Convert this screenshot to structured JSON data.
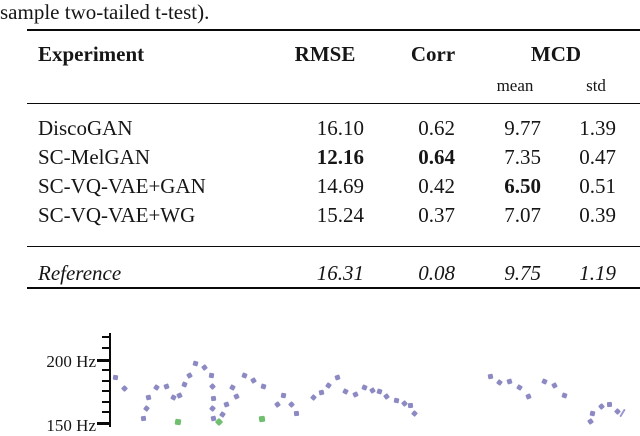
{
  "caption": {
    "text": "sample two-tailed t-test)."
  },
  "table": {
    "headers": {
      "experiment": "Experiment",
      "rmse": "RMSE",
      "corr": "Corr",
      "mcd": "MCD",
      "mcd_sub_mean": "mean",
      "mcd_sub_std": "std"
    },
    "rows": [
      {
        "name": "DiscoGAN",
        "rmse": "16.10",
        "corr": "0.62",
        "mcd_mean": "9.77",
        "mcd_std": "1.39",
        "bold": []
      },
      {
        "name": "SC-MelGAN",
        "rmse": "12.16",
        "corr": "0.64",
        "mcd_mean": "7.35",
        "mcd_std": "0.47",
        "bold": [
          "rmse",
          "corr"
        ]
      },
      {
        "name": "SC-VQ-VAE+GAN",
        "rmse": "14.69",
        "corr": "0.42",
        "mcd_mean": "6.50",
        "mcd_std": "0.51",
        "bold": [
          "mcd_mean"
        ]
      },
      {
        "name": "SC-VQ-VAE+WG",
        "rmse": "15.24",
        "corr": "0.37",
        "mcd_mean": "7.07",
        "mcd_std": "0.39",
        "bold": []
      }
    ],
    "reference_row": {
      "name": "Reference",
      "rmse": "16.31",
      "corr": "0.08",
      "mcd_mean": "9.75",
      "mcd_std": "1.19"
    }
  },
  "chart_data": {
    "type": "scatter",
    "title": "",
    "xlabel": "",
    "ylabel": "",
    "y_axis_ticks": [
      {
        "label": "200 Hz",
        "hz": 200
      },
      {
        "label": "150 Hz",
        "hz": 150
      }
    ],
    "minor_divisions_between_major": 6,
    "ylim_visible_hz": [
      149,
      221
    ],
    "grid": false,
    "legend": "none",
    "x_unit": "time (pixels, axis cropped out of view)",
    "series": [
      {
        "name": "pitch-contour-primary",
        "marker": "diamond",
        "color": "#8d8ac3",
        "points": [
          [
            115,
            185.9
          ],
          [
            124,
            177.3
          ],
          [
            143,
            153.9
          ],
          [
            146,
            161.7
          ],
          [
            148,
            170.3
          ],
          [
            156,
            178.1
          ],
          [
            166,
            178.9
          ],
          [
            173,
            170.3
          ],
          [
            179,
            171.9
          ],
          [
            184,
            180.5
          ],
          [
            189,
            187.5
          ],
          [
            195,
            196.9
          ],
          [
            204,
            193.8
          ],
          [
            211,
            187.5
          ],
          [
            212,
            178.9
          ],
          [
            213,
            169.5
          ],
          [
            212,
            161.7
          ],
          [
            213,
            153.9
          ],
          [
            222,
            157.0
          ],
          [
            226,
            164.8
          ],
          [
            232,
            178.1
          ],
          [
            236,
            171.1
          ],
          [
            244,
            187.5
          ],
          [
            253,
            183.6
          ],
          [
            263,
            178.9
          ],
          [
            277,
            164.8
          ],
          [
            283,
            171.9
          ],
          [
            291,
            164.8
          ],
          [
            296,
            157.8
          ],
          [
            313,
            170.3
          ],
          [
            321,
            174.2
          ],
          [
            328,
            179.7
          ],
          [
            337,
            185.9
          ],
          [
            345,
            175.0
          ],
          [
            355,
            172.7
          ],
          [
            364,
            178.1
          ],
          [
            372,
            175.8
          ],
          [
            379,
            175.0
          ],
          [
            386,
            171.1
          ],
          [
            396,
            168.0
          ],
          [
            404,
            165.6
          ],
          [
            410,
            164.1
          ],
          [
            414,
            157.8
          ],
          [
            490,
            186.7
          ],
          [
            499,
            182.0
          ],
          [
            509,
            182.8
          ],
          [
            519,
            178.1
          ],
          [
            528,
            171.1
          ],
          [
            544,
            182.8
          ],
          [
            554,
            179.7
          ],
          [
            564,
            171.9
          ],
          [
            590,
            150.8
          ],
          [
            592,
            157.8
          ],
          [
            601,
            163.3
          ],
          [
            609,
            164.8
          ],
          [
            617,
            159.4
          ]
        ]
      },
      {
        "name": "pitch-contour-secondary",
        "marker": "square",
        "color": "#6fbf6f",
        "points": [
          [
            178,
            150.8
          ],
          [
            219,
            150.8
          ],
          [
            262,
            153.1
          ]
        ]
      }
    ],
    "partial_mark": {
      "x": 622,
      "hz": 158.3,
      "color": "#9a98cc"
    }
  },
  "colors": {
    "rule": "#0a0a0a",
    "text": "#161616",
    "primary_marker": "#8d8ac3",
    "secondary_marker": "#6fbf6f"
  }
}
